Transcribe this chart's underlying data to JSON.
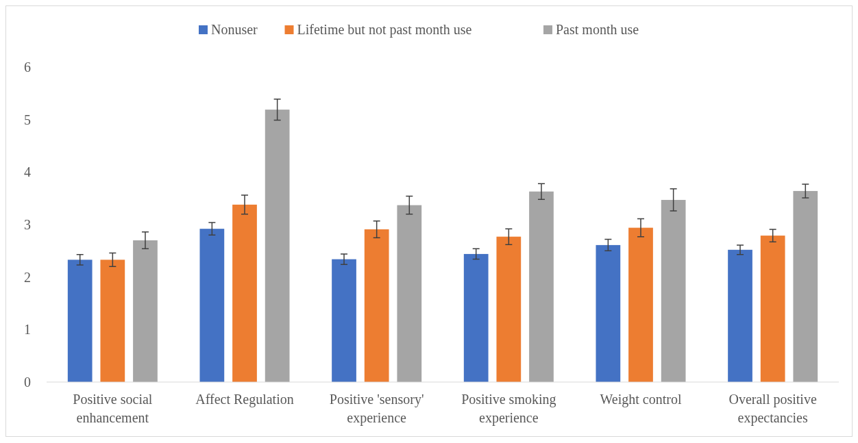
{
  "chart_data": {
    "type": "bar",
    "categories": [
      "Positive social enhancement",
      "Affect Regulation",
      "Positive 'sensory' experience",
      "Positive smoking experience",
      "Weight control",
      "Overall positive expectancies"
    ],
    "series": [
      {
        "name": "Nonuser",
        "color": "#4472c4",
        "values": [
          2.33,
          2.92,
          2.34,
          2.44,
          2.61,
          2.52
        ],
        "errors": [
          0.1,
          0.12,
          0.1,
          0.1,
          0.11,
          0.09
        ]
      },
      {
        "name": "Lifetime but not past month use",
        "color": "#ed7d31",
        "values": [
          2.33,
          3.38,
          2.91,
          2.77,
          2.94,
          2.79
        ],
        "errors": [
          0.13,
          0.18,
          0.16,
          0.15,
          0.17,
          0.12
        ]
      },
      {
        "name": "Past month use",
        "color": "#a5a5a5",
        "values": [
          2.7,
          5.19,
          3.37,
          3.63,
          3.47,
          3.64
        ],
        "errors": [
          0.16,
          0.2,
          0.17,
          0.15,
          0.21,
          0.13
        ]
      }
    ],
    "ylim": [
      0,
      6
    ],
    "yticks": [
      0,
      1,
      2,
      3,
      4,
      5,
      6
    ],
    "grid": false,
    "legend": "top"
  }
}
